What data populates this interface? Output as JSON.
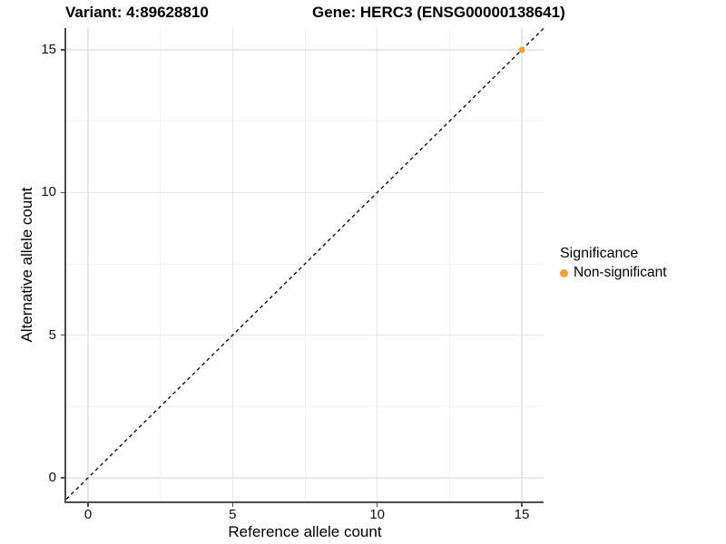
{
  "titles": {
    "variant": "Variant: 4:89628810",
    "gene": "Gene: HERC3 (ENSG00000138641)"
  },
  "chart_data": {
    "type": "scatter",
    "xlabel": "Reference allele count",
    "ylabel": "Alternative allele count",
    "x_ticks": [
      0,
      5,
      10,
      15
    ],
    "y_ticks": [
      0,
      5,
      10,
      15
    ],
    "x_minor_ticks": [
      2.5,
      7.5,
      12.5
    ],
    "y_minor_ticks": [
      2.5,
      7.5,
      12.5
    ],
    "xlim": [
      -0.75,
      15.75
    ],
    "ylim": [
      -0.75,
      15.75
    ],
    "grid": "on",
    "legend": {
      "position": "right",
      "title": "Significance",
      "entries": [
        {
          "label": "Non-significant",
          "color": "#F9A13B"
        }
      ]
    },
    "series": [
      {
        "name": "Non-significant",
        "color": "#F9A13B",
        "point_radius": 3.5,
        "points": [
          {
            "x": 15,
            "y": 15
          }
        ]
      }
    ],
    "reference_line": {
      "type": "identity y=x",
      "style": "dashed",
      "color": "#000000"
    }
  }
}
